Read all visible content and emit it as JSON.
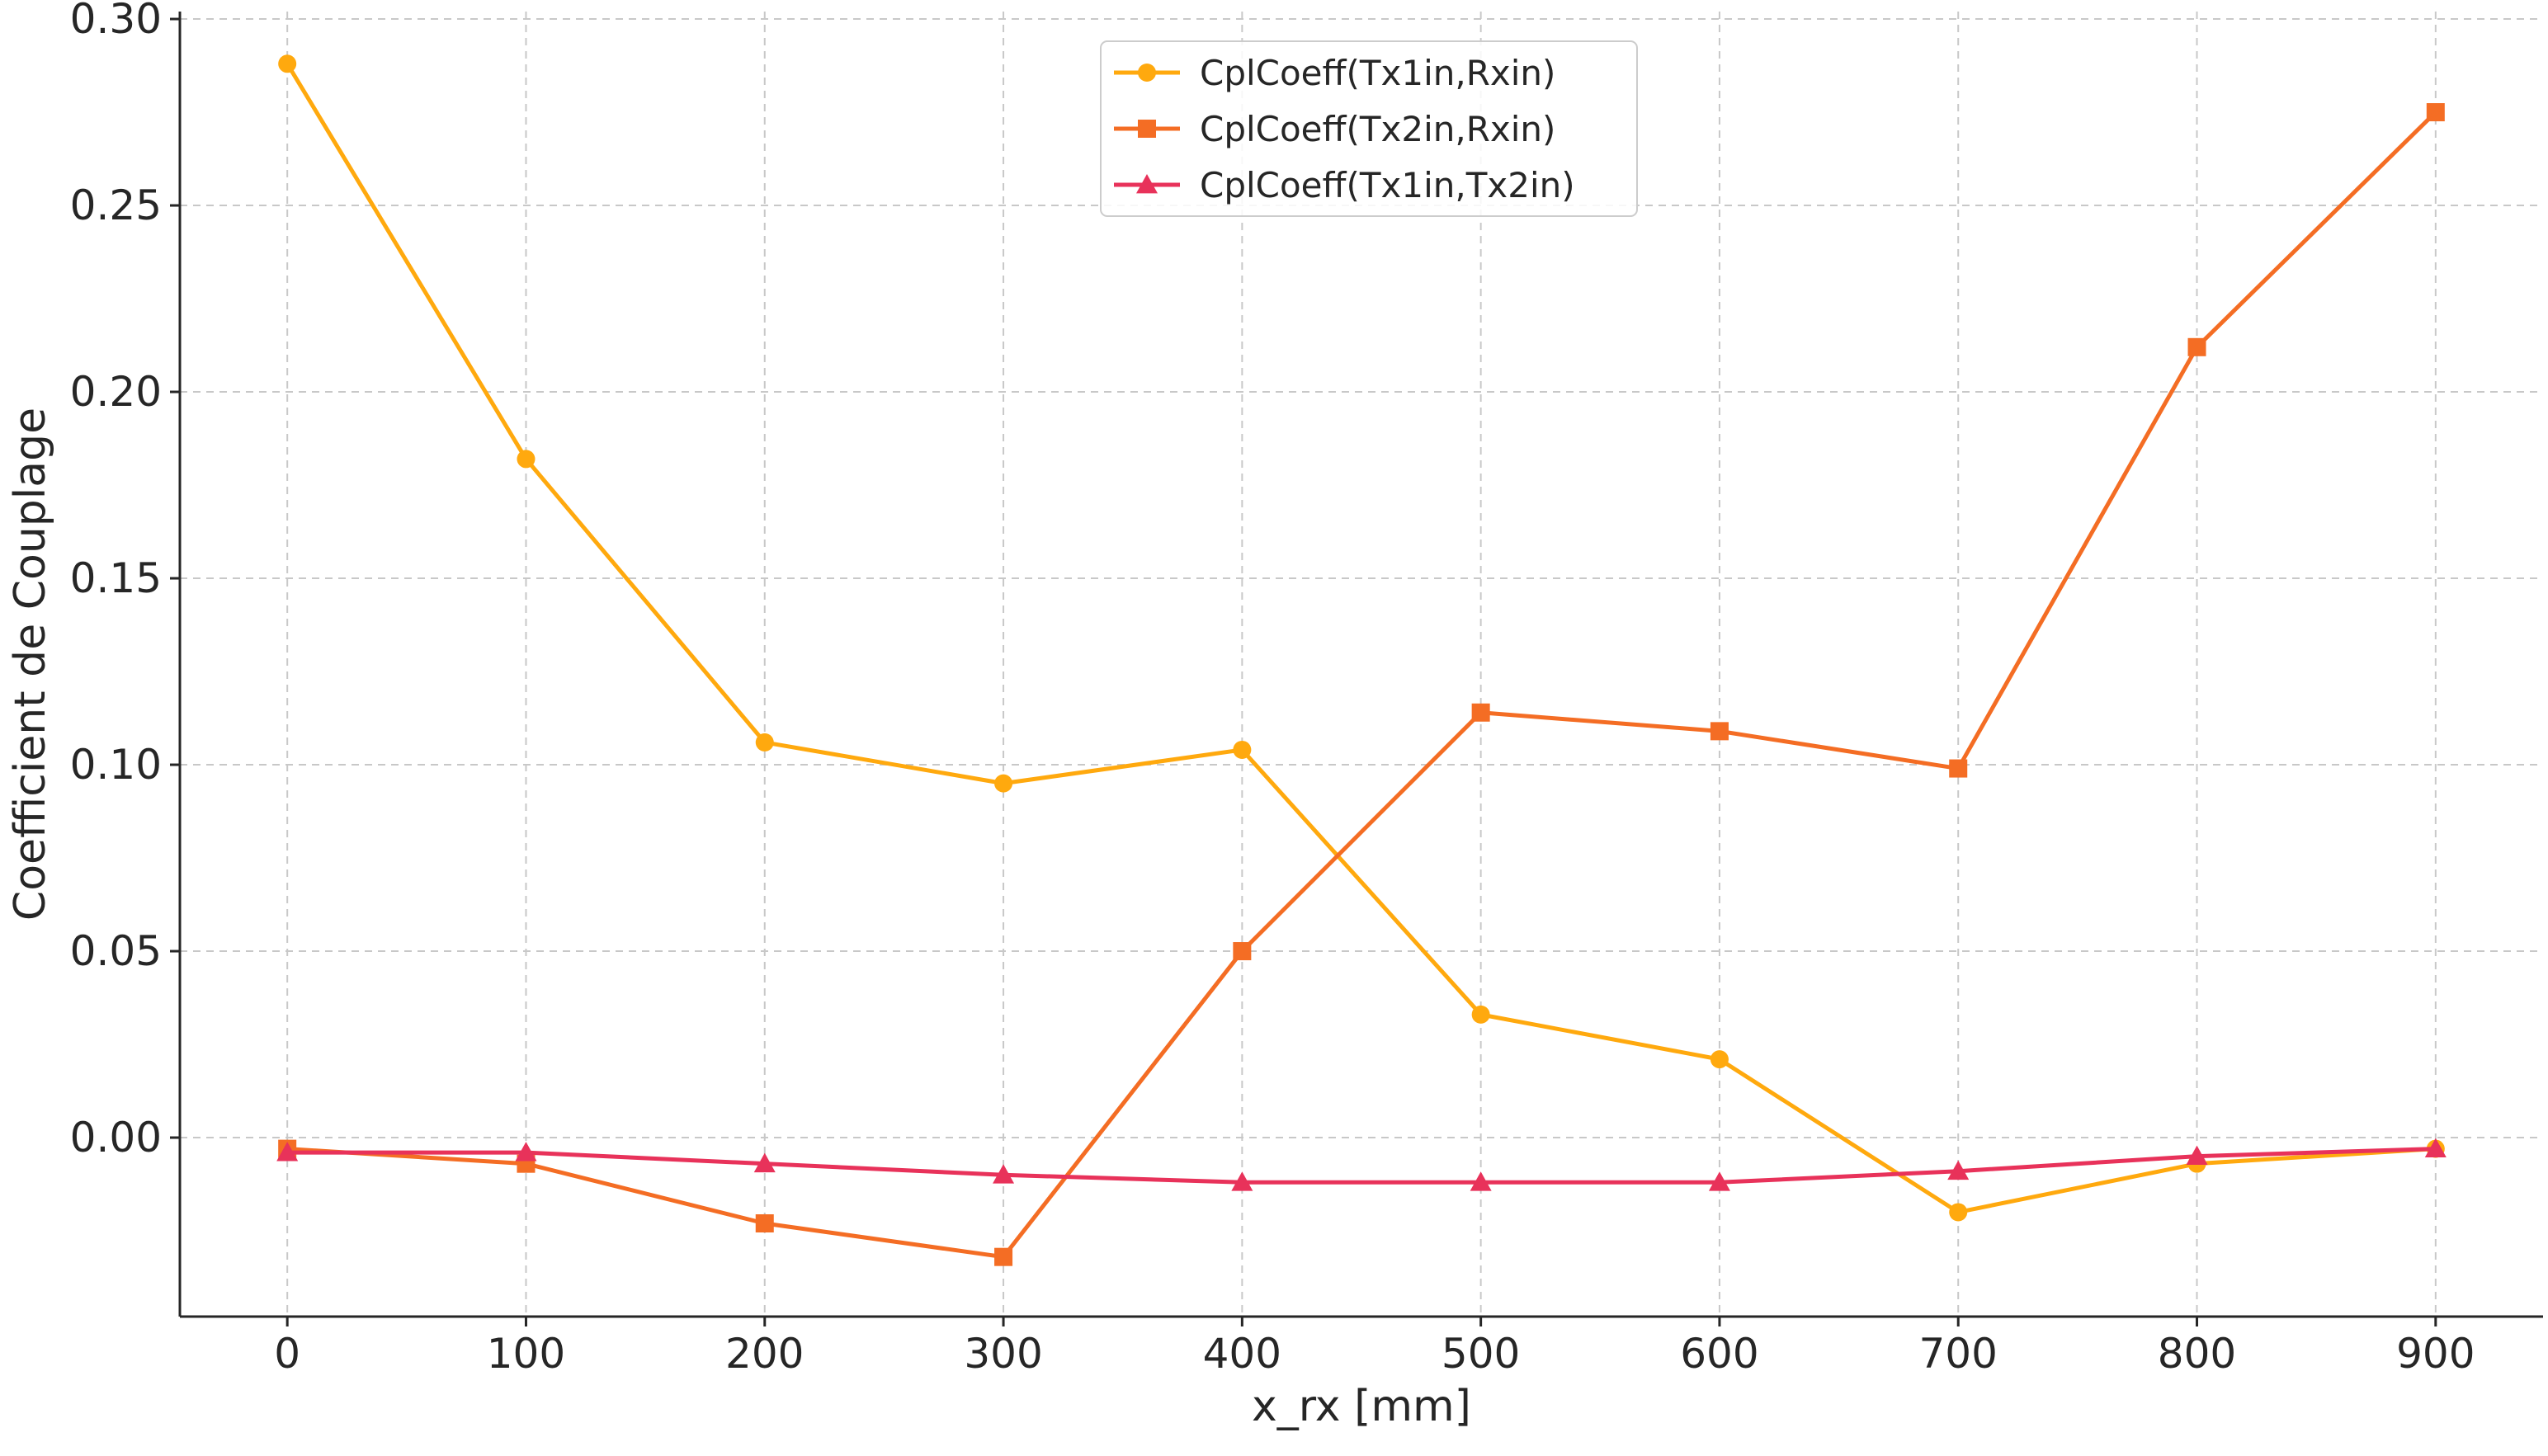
{
  "chart_data": {
    "type": "line",
    "title": "",
    "xlabel": "x_rx [mm]",
    "ylabel": "Coefficient de Couplage",
    "x": [
      0,
      100,
      200,
      300,
      400,
      500,
      600,
      700,
      800,
      900
    ],
    "xlim": [
      -45,
      945
    ],
    "ylim": [
      -0.048,
      0.302
    ],
    "xticks": [
      0,
      100,
      200,
      300,
      400,
      500,
      600,
      700,
      800,
      900
    ],
    "xtick_labels": [
      "0",
      "100",
      "200",
      "300",
      "400",
      "500",
      "600",
      "700",
      "800",
      "900"
    ],
    "yticks": [
      0.0,
      0.05,
      0.1,
      0.15,
      0.2,
      0.25,
      0.3
    ],
    "ytick_labels": [
      "0.00",
      "0.05",
      "0.10",
      "0.15",
      "0.20",
      "0.25",
      "0.30"
    ],
    "grid": true,
    "legend_position": "top-center",
    "series": [
      {
        "name": "CplCoeff(Tx1in,Rxin)",
        "color": "#FFA90E",
        "marker": "circle",
        "values": [
          0.288,
          0.182,
          0.106,
          0.095,
          0.104,
          0.033,
          0.021,
          -0.02,
          -0.007,
          -0.003
        ]
      },
      {
        "name": "CplCoeff(Tx2in,Rxin)",
        "color": "#F46D24",
        "marker": "square",
        "values": [
          -0.003,
          -0.007,
          -0.023,
          -0.032,
          0.05,
          0.114,
          0.109,
          0.099,
          0.212,
          0.275
        ]
      },
      {
        "name": "CplCoeff(Tx1in,Tx2in)",
        "color": "#E8325A",
        "marker": "triangle",
        "values": [
          -0.004,
          -0.004,
          -0.007,
          -0.01,
          -0.012,
          -0.012,
          -0.012,
          -0.009,
          -0.005,
          -0.003
        ]
      }
    ]
  }
}
